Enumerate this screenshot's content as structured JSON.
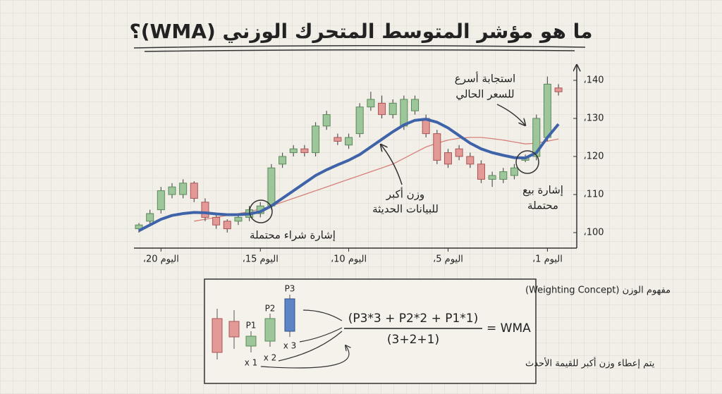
{
  "chart_data": {
    "type": "candlestick",
    "title": "ما هو مؤشر المتوسط المتحرك الوزني (WMA)؟",
    "categories": [
      null,
      null,
      "اليوم 20،",
      null,
      null,
      null,
      null,
      null,
      null,
      null,
      null,
      "اليوم 15،",
      null,
      null,
      null,
      null,
      null,
      null,
      null,
      "اليوم 10،",
      null,
      null,
      null,
      null,
      null,
      null,
      null,
      null,
      "اليوم 5،",
      null,
      null,
      null,
      null,
      null,
      null,
      null,
      null,
      "اليوم 1،",
      null
    ],
    "open": [
      101,
      103,
      106,
      110,
      110,
      113,
      108,
      104,
      103,
      103,
      104,
      105,
      107,
      118,
      121,
      122,
      121,
      128,
      125,
      123,
      126,
      133,
      134,
      131,
      128,
      132,
      130,
      126,
      121,
      122,
      120,
      118,
      114,
      114,
      115,
      119,
      120,
      125,
      138
    ],
    "close": [
      102,
      105,
      111,
      112,
      113,
      109,
      104,
      102,
      101,
      104,
      106,
      107,
      117,
      120,
      122,
      121,
      128,
      131,
      124,
      125,
      133,
      135,
      131,
      134,
      135,
      135,
      126,
      119,
      118,
      120,
      118,
      114,
      115,
      116,
      117,
      119.7,
      130,
      139,
      137
    ],
    "high": [
      102.5,
      106,
      112,
      113,
      114,
      113.5,
      109,
      105,
      103.5,
      105,
      107,
      108,
      118,
      121,
      123,
      123,
      129,
      132,
      126,
      126,
      134,
      137,
      136,
      135,
      136,
      136,
      131,
      127,
      122,
      123,
      121,
      119,
      116,
      117,
      118,
      120.5,
      131,
      141,
      139
    ],
    "low": [
      100,
      102,
      105,
      109,
      109,
      108,
      103,
      101,
      100,
      102,
      103,
      104,
      106,
      117,
      120,
      120,
      120,
      127,
      123,
      122,
      125,
      132,
      130,
      130,
      127,
      131,
      125,
      118,
      117,
      119,
      117,
      113,
      112,
      113,
      114,
      118.5,
      119,
      124,
      136
    ],
    "up_color": "#9dc79b",
    "down_color": "#e39a97",
    "lines": [
      {
        "color": "#3f63a8",
        "values": [
          100.5,
          102,
          103.5,
          104.5,
          105,
          105.3,
          105.2,
          104.9,
          104.7,
          104.7,
          104.9,
          105.5,
          107,
          109,
          111,
          113,
          115,
          116.5,
          117.8,
          119,
          120.5,
          122.5,
          124.5,
          126.5,
          128.3,
          129.5,
          129.8,
          129,
          127.5,
          125.5,
          123.5,
          122,
          121,
          120.3,
          119.7,
          119.6,
          121,
          125,
          128.5
        ]
      },
      {
        "color": "#d7807a",
        "values": [
          null,
          null,
          null,
          null,
          null,
          103,
          103.5,
          104,
          104.5,
          105,
          105.5,
          106.2,
          107,
          108,
          109,
          110,
          111,
          112,
          113,
          114,
          115,
          116,
          117,
          118,
          119.5,
          121,
          122.5,
          123.5,
          124.3,
          124.8,
          125,
          125,
          124.7,
          124.3,
          123.8,
          123.3,
          123.5,
          124,
          124.6
        ]
      }
    ],
    "ylim": [
      96,
      145
    ],
    "yticks": [
      {
        "value": 100,
        "label": "100،"
      },
      {
        "value": 110,
        "label": "110،"
      },
      {
        "value": 120,
        "label": "120،"
      },
      {
        "value": 130,
        "label": "130،"
      },
      {
        "value": 140,
        "label": "140،"
      }
    ],
    "annotations": [
      "إشارة شراء محتملة",
      "وزن أكبر",
      "للبيانات الحديثة",
      "إشارة بيع",
      "محتملة",
      "استجابة أسرع",
      "للسعر الحالي"
    ]
  },
  "inset": {
    "title": "مفهوم الوزن (Weighting Concept)",
    "labels": [
      "P1",
      "P2",
      "P3"
    ],
    "multipliers": [
      "x 1",
      "x 2",
      "x 3"
    ],
    "numerator": "(P3*3 + P2*2 + P1*1)",
    "denominator": "(3+2+1)",
    "equals": "= WMA",
    "note": "يتم إعطاء وزن أكبر للقيمة الأحدث"
  }
}
